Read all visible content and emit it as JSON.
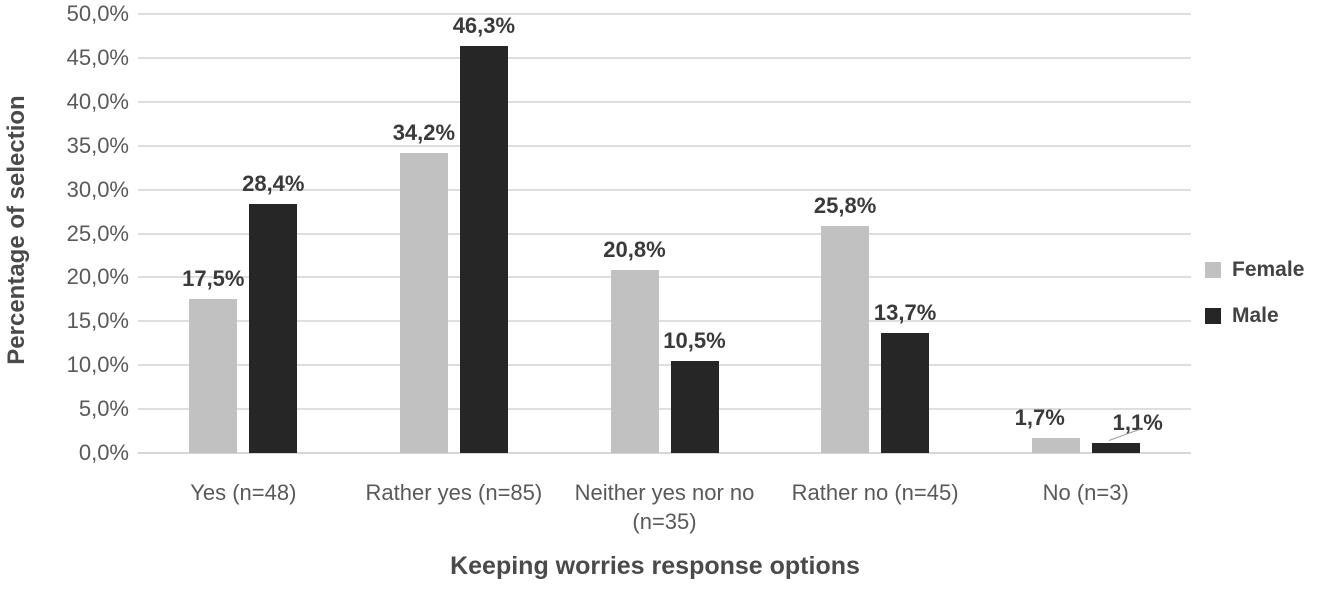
{
  "chart_data": {
    "type": "bar",
    "xlabel": "Keeping worries response options",
    "ylabel": "Percentage of selection",
    "categories": [
      "Yes (n=48)",
      "Rather yes (n=85)",
      "Neither yes nor no (n=35)",
      "Rather no (n=45)",
      "No (n=3)"
    ],
    "series": [
      {
        "name": "Female",
        "color": "#c1c1c1",
        "values": [
          17.5,
          34.2,
          20.8,
          25.8,
          1.7
        ],
        "labels": [
          "17,5%",
          "34,2%",
          "20,8%",
          "25,8%",
          "1,7%"
        ]
      },
      {
        "name": "Male",
        "color": "#262626",
        "values": [
          28.4,
          46.3,
          10.5,
          13.7,
          1.1
        ],
        "labels": [
          "28,4%",
          "46,3%",
          "10,5%",
          "13,7%",
          "1,1%"
        ]
      }
    ],
    "ylim": [
      0,
      50
    ],
    "ytick_step": 5,
    "ytick_labels": [
      "0,0%",
      "5,0%",
      "10,0%",
      "15,0%",
      "20,0%",
      "25,0%",
      "30,0%",
      "35,0%",
      "40,0%",
      "45,0%",
      "50,0%"
    ],
    "grid": true,
    "legend_position": "right",
    "annotations": [
      {
        "type": "leader-line",
        "series": "Male",
        "category": "No (n=3)",
        "label": "1,1%"
      }
    ]
  },
  "styles": {
    "background": "#ffffff",
    "gridline_color": "#dedede",
    "axis_line_color": "#d6d6d6",
    "tick_label_color": "#595959",
    "data_label_color": "#3a3a3a",
    "axis_title_color": "#4a4a4a",
    "legend_text_color": "#434343",
    "leader_line_color": "#9e9e9e"
  }
}
